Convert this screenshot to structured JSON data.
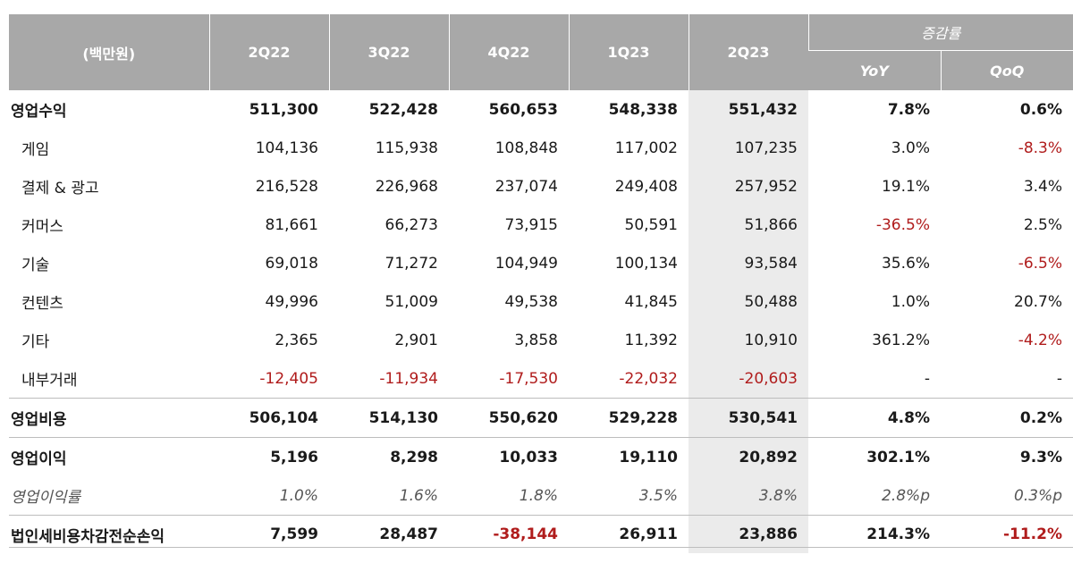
{
  "header": {
    "unit": "(백만원)",
    "periods": [
      "2Q22",
      "3Q22",
      "4Q22",
      "1Q23",
      "2Q23"
    ],
    "growth_group": "증감률",
    "yoy": "YoY",
    "qoq": "QoQ"
  },
  "colors": {
    "header_bg": "#a8a8a8",
    "highlight": "#ebebeb",
    "negative": "#b01c1c"
  },
  "rows": [
    {
      "label": "영업수익",
      "values": [
        "511,300",
        "522,428",
        "560,653",
        "548,338",
        "551,432"
      ],
      "yoy": "7.8%",
      "qoq": "0.6%"
    },
    {
      "label": "게임",
      "values": [
        "104,136",
        "115,938",
        "108,848",
        "117,002",
        "107,235"
      ],
      "yoy": "3.0%",
      "qoq": "-8.3%"
    },
    {
      "label": "결제 & 광고",
      "values": [
        "216,528",
        "226,968",
        "237,074",
        "249,408",
        "257,952"
      ],
      "yoy": "19.1%",
      "qoq": "3.4%"
    },
    {
      "label": "커머스",
      "values": [
        "81,661",
        "66,273",
        "73,915",
        "50,591",
        "51,866"
      ],
      "yoy": "-36.5%",
      "qoq": "2.5%"
    },
    {
      "label": "기술",
      "values": [
        "69,018",
        "71,272",
        "104,949",
        "100,134",
        "93,584"
      ],
      "yoy": "35.6%",
      "qoq": "-6.5%"
    },
    {
      "label": "컨텐츠",
      "values": [
        "49,996",
        "51,009",
        "49,538",
        "41,845",
        "50,488"
      ],
      "yoy": "1.0%",
      "qoq": "20.7%"
    },
    {
      "label": "기타",
      "values": [
        "2,365",
        "2,901",
        "3,858",
        "11,392",
        "10,910"
      ],
      "yoy": "361.2%",
      "qoq": "-4.2%"
    },
    {
      "label": "내부거래",
      "values": [
        "-12,405",
        "-11,934",
        "-17,530",
        "-22,032",
        "-20,603"
      ],
      "yoy": "-",
      "qoq": "-"
    },
    {
      "label": "영업비용",
      "values": [
        "506,104",
        "514,130",
        "550,620",
        "529,228",
        "530,541"
      ],
      "yoy": "4.8%",
      "qoq": "0.2%"
    },
    {
      "label": "영업이익",
      "values": [
        "5,196",
        "8,298",
        "10,033",
        "19,110",
        "20,892"
      ],
      "yoy": "302.1%",
      "qoq": "9.3%"
    },
    {
      "label": "영업이익률",
      "values": [
        "1.0%",
        "1.6%",
        "1.8%",
        "3.5%",
        "3.8%"
      ],
      "yoy": "2.8%p",
      "qoq": "0.3%p"
    },
    {
      "label": "법인세비용차감전순손익",
      "values": [
        "7,599",
        "28,487",
        "-38,144",
        "26,911",
        "23,886"
      ],
      "yoy": "214.3%",
      "qoq": "-11.2%"
    }
  ]
}
